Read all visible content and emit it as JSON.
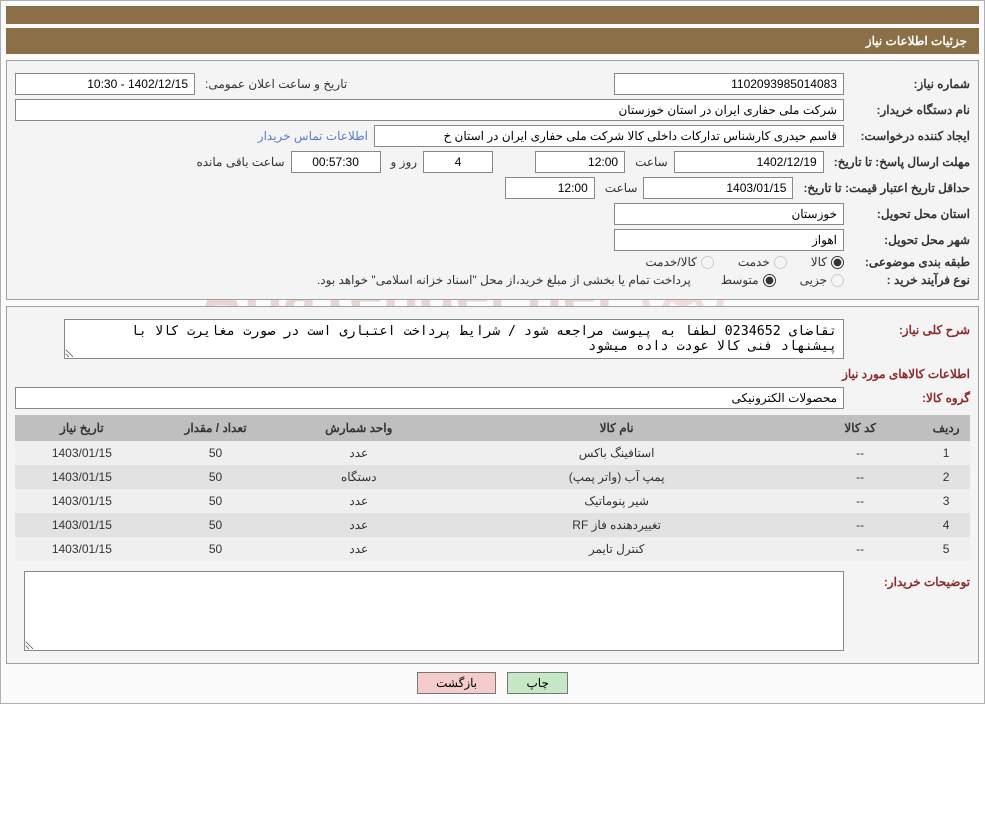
{
  "header": {
    "title": "جزئیات اطلاعات نیاز"
  },
  "fields": {
    "need_number_label": "شماره نیاز:",
    "need_number": "1102093985014083",
    "announce_datetime_label": "تاریخ و ساعت اعلان عمومی:",
    "announce_datetime": "1402/12/15 - 10:30",
    "buyer_org_label": "نام دستگاه خریدار:",
    "buyer_org": "شرکت ملی حفاری ایران در استان خوزستان",
    "requester_label": "ایجاد کننده درخواست:",
    "requester": "قاسم حیدری کارشناس تدارکات داخلی کالا شرکت ملی حفاری ایران در استان خ",
    "buyer_contact_link": "اطلاعات تماس خریدار",
    "reply_deadline_label": "مهلت ارسال پاسخ: تا تاریخ:",
    "reply_date": "1402/12/19",
    "time_label": "ساعت",
    "reply_time": "12:00",
    "days_and": "روز و",
    "days_value": "4",
    "countdown": "00:57:30",
    "time_remaining_label": "ساعت باقی مانده",
    "price_validity_label": "حداقل تاریخ اعتبار قیمت: تا تاریخ:",
    "price_validity_date": "1403/01/15",
    "price_validity_time": "12:00",
    "delivery_province_label": "استان محل تحویل:",
    "delivery_province": "خوزستان",
    "delivery_city_label": "شهر محل تحویل:",
    "delivery_city": "اهواز",
    "subject_class_label": "طبقه بندی موضوعی:",
    "subject_class": {
      "goods": "کالا",
      "service": "خدمت",
      "goods_service": "کالا/خدمت"
    },
    "purchase_type_label": "نوع فرآیند خرید :",
    "purchase_type": {
      "partial": "جزیی",
      "medium": "متوسط"
    },
    "purchase_note": "پرداخت تمام یا بخشی از مبلغ خرید،از محل \"اسناد خزانه اسلامی\" خواهد بود.",
    "overall_desc_label": "شرح کلی نیاز:",
    "overall_desc": "تقاضای 0234652 لطفا به پیوست مراجعه شود / شرایط پرداخت اعتباری است در صورت مغایرت کالا با پیشنهاد فنی کالا عودت داده میشود",
    "items_info_title": "اطلاعات کالاهای مورد نیاز",
    "goods_group_label": "گروه کالا:",
    "goods_group": "محصولات الکترونیکی",
    "buyer_notes_label": "توضیحات خریدار:",
    "buyer_notes": ""
  },
  "table": {
    "columns": [
      "ردیف",
      "کد کالا",
      "نام کالا",
      "واحد شمارش",
      "تعداد / مقدار",
      "تاریخ نیاز"
    ],
    "col_widths": [
      "5%",
      "13%",
      "38%",
      "16%",
      "14%",
      "14%"
    ],
    "rows": [
      [
        "1",
        "--",
        "استافینگ باکس",
        "عدد",
        "50",
        "1403/01/15"
      ],
      [
        "2",
        "--",
        "پمپ آب (واتر پمپ)",
        "دستگاه",
        "50",
        "1403/01/15"
      ],
      [
        "3",
        "--",
        "شیر پنوماتیک",
        "عدد",
        "50",
        "1403/01/15"
      ],
      [
        "4",
        "--",
        "تغییردهنده فاز RF",
        "عدد",
        "50",
        "1403/01/15"
      ],
      [
        "5",
        "--",
        "کنترل تایمر",
        "عدد",
        "50",
        "1403/01/15"
      ]
    ]
  },
  "buttons": {
    "print": "چاپ",
    "back": "بازگشت"
  },
  "watermark": {
    "text": "AriaTender.net",
    "color": "#9b2a2a"
  }
}
